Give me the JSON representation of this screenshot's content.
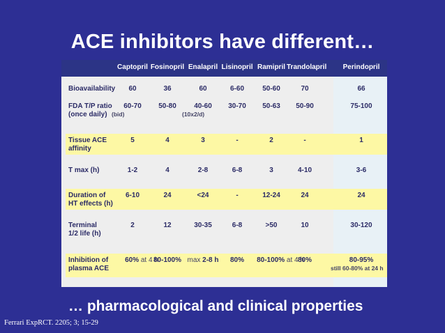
{
  "title": "ACE inhibitors have different…",
  "subtitle": "… pharmacological and clinical properties",
  "citation": "Ferrari ExpRCT. 2205; 3; 15-29",
  "table": {
    "columns": [
      "Captopril",
      "Fosinopril",
      "Enalapril",
      "Lisinopril",
      "Ramipril",
      "Trandolapril",
      "Perindopril"
    ],
    "rows": [
      {
        "label": "Bioavailability",
        "highlight": false,
        "values": [
          "60",
          "36",
          "60",
          "6-60",
          "50-60",
          "70",
          "66"
        ]
      },
      {
        "label": "FDA T/P ratio\n(once daily)",
        "highlight": false,
        "values": [
          "60-70",
          "50-80",
          "40-60",
          "30-70",
          "50-63",
          "50-90",
          "75-100"
        ],
        "notes": [
          "(bid)",
          "",
          "(10x2/d)",
          "",
          "",
          "",
          ""
        ]
      },
      {
        "label": "Tissue ACE\naffinity",
        "highlight": true,
        "values": [
          "5",
          "4",
          "3",
          "-",
          "2",
          "-",
          "1"
        ]
      },
      {
        "label": "T max (h)",
        "highlight": false,
        "values": [
          "1-2",
          "4",
          "2-8",
          "6-8",
          "3",
          "4-10",
          "3-6"
        ]
      },
      {
        "label": "Duration of\nHT effects (h)",
        "highlight": true,
        "values": [
          "6-10",
          "24",
          "<24",
          "-",
          "12-24",
          "24",
          "24"
        ]
      },
      {
        "label": "Terminal\n1/2 life (h)",
        "highlight": false,
        "values": [
          "2",
          "12",
          "30-35",
          "6-8",
          ">50",
          "10",
          "30-120"
        ]
      },
      {
        "label": "Inhibition of\nplasma ACE",
        "highlight": true,
        "values": [
          "60%",
          "80-100%",
          "2-8 h",
          "80%",
          "80-100%",
          "80%",
          "80-95%"
        ],
        "prefix": [
          "",
          "",
          "max",
          "",
          "",
          "",
          ""
        ],
        "suffix": [
          "at 4 h",
          "",
          "",
          "",
          "at 4 h",
          "",
          ""
        ],
        "perindopril_note": "still 60-80% at 24 h"
      }
    ]
  }
}
